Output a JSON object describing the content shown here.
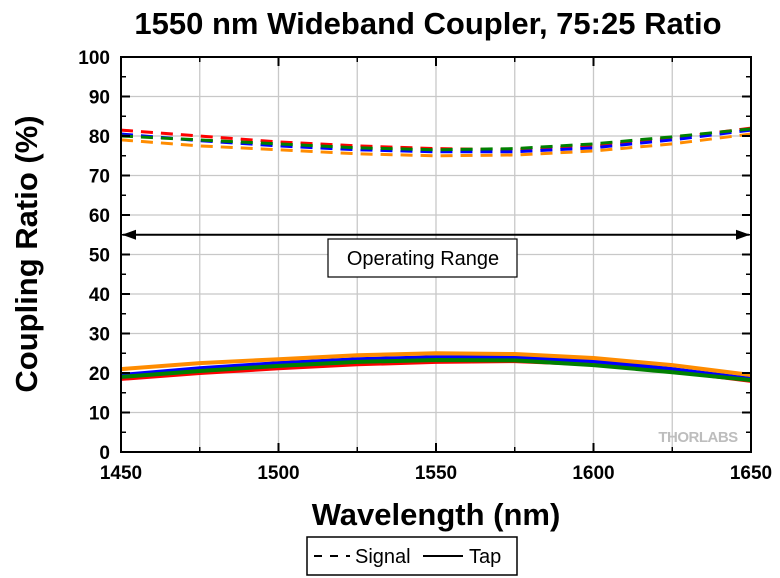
{
  "chart_data": {
    "type": "line",
    "title": "1550 nm Wideband Coupler, 75:25 Ratio",
    "xlabel": "Wavelength (nm)",
    "ylabel": "Coupling Ratio (%)",
    "xlim": [
      1450,
      1650
    ],
    "ylim": [
      0,
      100
    ],
    "x_ticks": [
      1450,
      1500,
      1550,
      1600,
      1650
    ],
    "y_ticks": [
      0,
      10,
      20,
      30,
      40,
      50,
      60,
      70,
      80,
      90,
      100
    ],
    "grid": true,
    "legend": {
      "placement": "bottom",
      "entries": [
        {
          "label": "Signal",
          "style": "dashed"
        },
        {
          "label": "Tap",
          "style": "solid"
        }
      ]
    },
    "annotation": {
      "text": "Operating Range",
      "x_start": 1450,
      "x_end": 1650,
      "y": 55
    },
    "watermark": "THORLABS",
    "x": [
      1450,
      1475,
      1500,
      1525,
      1550,
      1575,
      1600,
      1625,
      1650
    ],
    "series": [
      {
        "role": "signal",
        "color": "#ff0000",
        "style": "dashed",
        "values": [
          81.5,
          80.0,
          78.5,
          77.5,
          76.8,
          76.5,
          77.5,
          79.5,
          82.0
        ]
      },
      {
        "role": "signal",
        "color": "#0000ff",
        "style": "dashed",
        "values": [
          80.5,
          78.8,
          77.5,
          76.5,
          76.0,
          76.0,
          77.0,
          79.0,
          81.5
        ]
      },
      {
        "role": "signal",
        "color": "#008000",
        "style": "dashed",
        "values": [
          80.0,
          79.0,
          78.0,
          77.0,
          76.5,
          76.8,
          78.0,
          79.8,
          81.8
        ]
      },
      {
        "role": "signal",
        "color": "#ff8c00",
        "style": "dashed",
        "values": [
          79.0,
          77.5,
          76.5,
          75.5,
          75.0,
          75.2,
          76.2,
          78.0,
          80.5
        ]
      },
      {
        "role": "tap",
        "color": "#ff0000",
        "style": "solid",
        "values": [
          18.5,
          20.0,
          21.2,
          22.2,
          22.8,
          23.0,
          22.2,
          20.5,
          18.0
        ]
      },
      {
        "role": "tap",
        "color": "#0000ff",
        "style": "solid",
        "values": [
          19.5,
          21.2,
          22.5,
          23.5,
          24.0,
          24.0,
          23.0,
          21.0,
          18.5
        ]
      },
      {
        "role": "tap",
        "color": "#008000",
        "style": "solid",
        "values": [
          19.0,
          20.5,
          21.8,
          22.8,
          23.3,
          23.2,
          22.0,
          20.2,
          18.2
        ]
      },
      {
        "role": "tap",
        "color": "#ff8c00",
        "style": "solid",
        "values": [
          21.0,
          22.5,
          23.5,
          24.5,
          25.0,
          24.8,
          23.8,
          22.0,
          19.5
        ]
      }
    ]
  }
}
